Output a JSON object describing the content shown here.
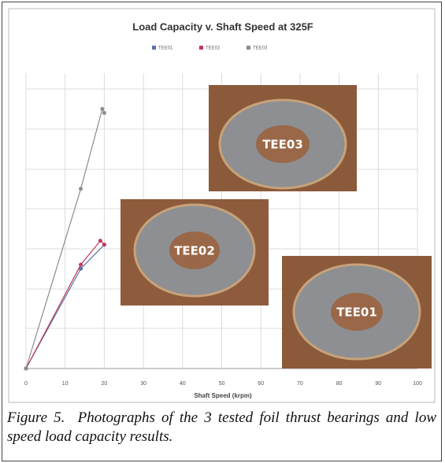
{
  "chart_data": {
    "type": "line",
    "title": "Load Capacity v. Shaft Speed at 325F",
    "x_label": "Shaft Speed (krpm)",
    "series": [
      {
        "name": "TEE01",
        "color": "#5a74a8",
        "x": [
          0,
          14,
          20
        ],
        "values": [
          0,
          2.5,
          3.1
        ]
      },
      {
        "name": "TEE02",
        "color": "#c0395a",
        "x": [
          0,
          14,
          19,
          20
        ],
        "values": [
          0,
          2.6,
          3.2,
          3.1
        ]
      },
      {
        "name": "TEE03",
        "color": "#8c8c8c",
        "x": [
          0,
          14,
          19.5,
          20
        ],
        "values": [
          0,
          4.5,
          6.5,
          6.4
        ]
      }
    ],
    "xlim": [
      0,
      100
    ],
    "xticks": [
      0,
      10,
      20,
      30,
      40,
      50,
      60,
      70,
      80,
      90,
      100
    ],
    "ylim": [
      0,
      7
    ],
    "grid": true
  },
  "photos": [
    {
      "label": "TEE03"
    },
    {
      "label": "TEE02"
    },
    {
      "label": "TEE01"
    }
  ],
  "caption": "Figure 5.  Photographs of the 3 tested foil thrust bearings and low speed load capacity results."
}
